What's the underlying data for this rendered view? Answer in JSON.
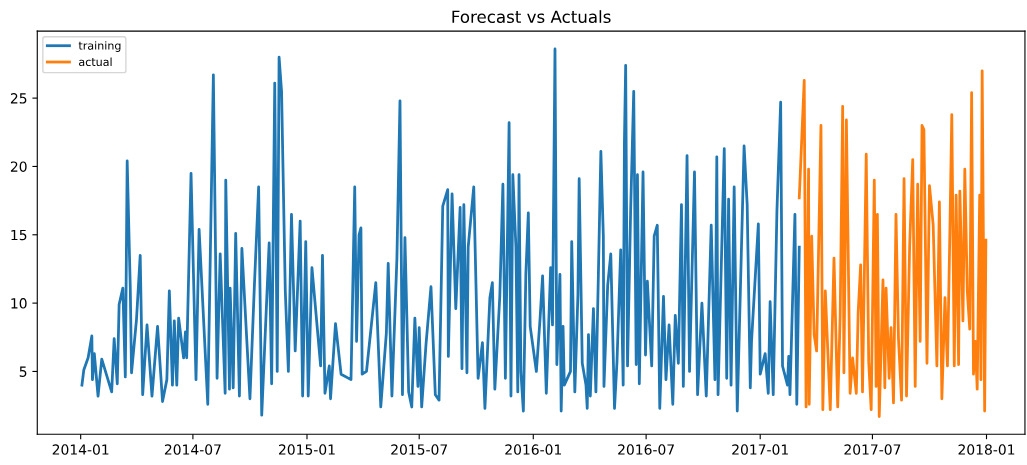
{
  "chart_data": {
    "type": "line",
    "title": "Forecast vs Actuals",
    "legend": "top left",
    "grid": false,
    "xlim": [
      "2013-10-23",
      "2018-03-04"
    ],
    "ylim": [
      0.4,
      29.9
    ],
    "xticks": [
      "2014-01",
      "2014-07",
      "2015-01",
      "2015-07",
      "2016-01",
      "2016-07",
      "2017-01",
      "2017-07",
      "2018-01"
    ],
    "yticks": [
      5,
      10,
      15,
      20,
      25
    ],
    "series": [
      {
        "name": "training",
        "color": "#1f77b4",
        "x": [
          "2014-01-03",
          "2014-01-06",
          "2014-01-13",
          "2014-01-19",
          "2014-01-20",
          "2014-01-23",
          "2014-01-29",
          "2014-02-04",
          "2014-02-20",
          "2014-02-24",
          "2014-03-01",
          "2014-03-04",
          "2014-03-10",
          "2014-03-14",
          "2014-03-17",
          "2014-03-22",
          "2014-03-24",
          "2014-04-01",
          "2014-04-07",
          "2014-04-11",
          "2014-04-18",
          "2014-04-26",
          "2014-05-05",
          "2014-05-13",
          "2014-05-20",
          "2014-05-24",
          "2014-05-29",
          "2014-06-01",
          "2014-06-05",
          "2014-06-08",
          "2014-06-16",
          "2014-06-19",
          "2014-06-21",
          "2014-06-28",
          "2014-07-06",
          "2014-07-11",
          "2014-07-25",
          "2014-08-03",
          "2014-08-09",
          "2014-08-14",
          "2014-08-22",
          "2014-08-23",
          "2014-08-29",
          "2014-08-30",
          "2014-09-04",
          "2014-09-08",
          "2014-09-14",
          "2014-09-18",
          "2014-10-01",
          "2014-10-08",
          "2014-10-15",
          "2014-10-20",
          "2014-11-01",
          "2014-11-05",
          "2014-11-10",
          "2014-11-14",
          "2014-11-17",
          "2014-11-21",
          "2014-11-27",
          "2014-12-02",
          "2014-12-07",
          "2014-12-13",
          "2014-12-21",
          "2014-12-25",
          "2014-12-30",
          "2015-01-03",
          "2015-01-09",
          "2015-01-23",
          "2015-01-26",
          "2015-01-30",
          "2015-02-06",
          "2015-02-08",
          "2015-02-16",
          "2015-02-25",
          "2015-03-13",
          "2015-03-19",
          "2015-03-22",
          "2015-03-26",
          "2015-03-29",
          "2015-03-31",
          "2015-04-07",
          "2015-04-22",
          "2015-04-30",
          "2015-05-09",
          "2015-05-12",
          "2015-05-18",
          "2015-05-26",
          "2015-05-31",
          "2015-06-04",
          "2015-06-08",
          "2015-06-14",
          "2015-06-19",
          "2015-06-24",
          "2015-06-29",
          "2015-07-01",
          "2015-07-05",
          "2015-07-12",
          "2015-07-20",
          "2015-07-27",
          "2015-08-02",
          "2015-08-08",
          "2015-08-16",
          "2015-08-17",
          "2015-08-23",
          "2015-08-29",
          "2015-09-05",
          "2015-09-08",
          "2015-09-11",
          "2015-09-16",
          "2015-09-18",
          "2015-09-27",
          "2015-10-04",
          "2015-10-11",
          "2015-10-15",
          "2015-10-23",
          "2015-10-27",
          "2015-10-31",
          "2015-11-08",
          "2015-11-13",
          "2015-11-17",
          "2015-11-23",
          "2015-11-26",
          "2015-11-29",
          "2015-12-04",
          "2015-12-07",
          "2015-12-09",
          "2015-12-12",
          "2015-12-16",
          "2015-12-20",
          "2015-12-24",
          "2015-12-27",
          "2016-01-06",
          "2016-01-12",
          "2016-01-16",
          "2016-01-22",
          "2016-01-29",
          "2016-02-01",
          "2016-02-05",
          "2016-02-08",
          "2016-02-13",
          "2016-02-15",
          "2016-02-18",
          "2016-02-20",
          "2016-03-01",
          "2016-03-03",
          "2016-03-08",
          "2016-03-13",
          "2016-03-15",
          "2016-03-20",
          "2016-03-26",
          "2016-03-28",
          "2016-03-30",
          "2016-04-02",
          "2016-04-07",
          "2016-04-11",
          "2016-04-15",
          "2016-04-19",
          "2016-04-23",
          "2016-04-24",
          "2016-04-30",
          "2016-05-05",
          "2016-05-11",
          "2016-05-15",
          "2016-05-21",
          "2016-05-25",
          "2016-05-27",
          "2016-05-29",
          "2016-06-01",
          "2016-06-06",
          "2016-06-11",
          "2016-06-15",
          "2016-06-17",
          "2016-06-20",
          "2016-06-26",
          "2016-06-30",
          "2016-07-03",
          "2016-07-10",
          "2016-07-14",
          "2016-07-19",
          "2016-07-23",
          "2016-07-29",
          "2016-08-02",
          "2016-08-07",
          "2016-08-13",
          "2016-08-17",
          "2016-08-22",
          "2016-08-27",
          "2016-08-30",
          "2016-09-05",
          "2016-09-09",
          "2016-09-17",
          "2016-09-22",
          "2016-09-29",
          "2016-10-06",
          "2016-10-14",
          "2016-10-20",
          "2016-10-23",
          "2016-10-25",
          "2016-11-04",
          "2016-11-08",
          "2016-11-11",
          "2016-11-15",
          "2016-11-20",
          "2016-11-25",
          "2016-12-06",
          "2016-12-11",
          "2016-12-16",
          "2016-12-18",
          "2016-12-29",
          "2017-01-01",
          "2017-01-09",
          "2017-01-14",
          "2017-01-17",
          "2017-01-22",
          "2017-01-28",
          "2017-02-03",
          "2017-02-06",
          "2017-02-14",
          "2017-02-16",
          "2017-02-18",
          "2017-02-26",
          "2017-03-01",
          "2017-03-05"
        ],
        "values": [
          4.0,
          5.1,
          6.0,
          7.6,
          4.4,
          6.3,
          3.2,
          5.9,
          3.5,
          7.4,
          4.1,
          9.9,
          11.1,
          4.6,
          20.4,
          11.1,
          4.9,
          8.8,
          13.5,
          3.3,
          8.4,
          3.2,
          8.3,
          2.8,
          4.4,
          10.9,
          4.0,
          8.7,
          4.0,
          8.9,
          6.0,
          7.9,
          6.0,
          19.5,
          4.4,
          15.4,
          2.6,
          26.7,
          4.5,
          13.6,
          3.4,
          19.0,
          3.7,
          11.1,
          3.8,
          15.1,
          3.2,
          14.0,
          3.0,
          11.1,
          18.5,
          1.8,
          14.4,
          4.1,
          26.1,
          5.0,
          28.0,
          25.5,
          10.9,
          5.0,
          16.5,
          6.5,
          16.0,
          3.2,
          14.5,
          3.2,
          12.6,
          5.4,
          13.5,
          3.4,
          5.4,
          3.0,
          8.5,
          4.8,
          4.4,
          18.5,
          7.2,
          15.0,
          15.5,
          4.8,
          5.0,
          11.5,
          2.4,
          7.8,
          12.9,
          3.2,
          13.2,
          24.8,
          3.3,
          14.8,
          3.5,
          2.4,
          8.9,
          3.9,
          8.2,
          2.4,
          7.0,
          11.2,
          3.3,
          2.9,
          17.1,
          18.3,
          6.1,
          18.0,
          9.6,
          17.0,
          5.2,
          17.2,
          4.9,
          14.1,
          18.5,
          4.5,
          7.1,
          2.3,
          10.4,
          11.5,
          3.7,
          10.5,
          18.7,
          4.5,
          23.2,
          3.2,
          19.4,
          14.1,
          3.5,
          19.4,
          5.0,
          2.1,
          12.1,
          16.6,
          8.3,
          5.0,
          8.9,
          12.0,
          3.4,
          12.6,
          8.4,
          28.6,
          5.5,
          12.1,
          2.1,
          8.3,
          4.0,
          5.0,
          14.5,
          3.5,
          10.6,
          19.1,
          5.6,
          4.0,
          2.3,
          7.7,
          3.2,
          9.6,
          3.5,
          12.1,
          21.1,
          14.9,
          3.9,
          11.3,
          13.6,
          2.3,
          5.7,
          13.9,
          4.0,
          21.8,
          27.4,
          5.4,
          16.7,
          25.5,
          5.5,
          19.4,
          4.1,
          19.6,
          6.2,
          11.6,
          5.4,
          14.9,
          15.7,
          2.3,
          10.5,
          4.4,
          8.4,
          2.6,
          9.1,
          5.6,
          17.2,
          3.9,
          20.8,
          5.0,
          19.6,
          3.3,
          10.0,
          3.2,
          15.7,
          4.4,
          20.7,
          3.3,
          21.3,
          4.5,
          17.6,
          4.0,
          18.5,
          2.1,
          21.5,
          17.2,
          3.8,
          7.2,
          15.8,
          4.8,
          6.3,
          3.4,
          10.1,
          3.3,
          16.8,
          24.7,
          5.4,
          4.0,
          6.1,
          3.3,
          16.5,
          2.6,
          14.1
        ]
      },
      {
        "name": "actual",
        "color": "#ff7f0e",
        "x": [
          "2017-03-05",
          "2017-03-13",
          "2017-03-16",
          "2017-03-20",
          "2017-03-21",
          "2017-03-25",
          "2017-03-29",
          "2017-04-02",
          "2017-04-09",
          "2017-04-12",
          "2017-04-16",
          "2017-04-24",
          "2017-04-30",
          "2017-05-06",
          "2017-05-10",
          "2017-05-14",
          "2017-05-16",
          "2017-05-20",
          "2017-05-26",
          "2017-05-30",
          "2017-06-05",
          "2017-06-08",
          "2017-06-12",
          "2017-06-15",
          "2017-06-21",
          "2017-06-25",
          "2017-06-29",
          "2017-07-04",
          "2017-07-07",
          "2017-07-09",
          "2017-07-12",
          "2017-07-18",
          "2017-07-21",
          "2017-07-23",
          "2017-07-28",
          "2017-07-31",
          "2017-08-04",
          "2017-08-08",
          "2017-08-12",
          "2017-08-17",
          "2017-08-21",
          "2017-08-25",
          "2017-08-30",
          "2017-09-04",
          "2017-09-08",
          "2017-09-12",
          "2017-09-16",
          "2017-09-19",
          "2017-09-22",
          "2017-09-27",
          "2017-10-01",
          "2017-10-07",
          "2017-10-13",
          "2017-10-17",
          "2017-10-21",
          "2017-10-26",
          "2017-10-30",
          "2017-11-03",
          "2017-11-06",
          "2017-11-10",
          "2017-11-13",
          "2017-11-17",
          "2017-11-19",
          "2017-11-24",
          "2017-11-27",
          "2017-12-01",
          "2017-12-05",
          "2017-12-08",
          "2017-12-11",
          "2017-12-14",
          "2017-12-17",
          "2017-12-21",
          "2017-12-23",
          "2017-12-25",
          "2017-12-29",
          "2017-12-31"
        ],
        "values": [
          17.7,
          26.3,
          2.4,
          19.8,
          2.6,
          14.9,
          7.7,
          6.5,
          23.0,
          2.2,
          10.9,
          2.2,
          13.3,
          2.4,
          9.1,
          24.4,
          4.9,
          23.4,
          3.4,
          6.0,
          3.4,
          9.3,
          12.8,
          3.5,
          20.9,
          5.7,
          2.2,
          19.0,
          3.9,
          16.5,
          1.7,
          11.7,
          3.8,
          11.1,
          4.5,
          8.2,
          2.7,
          16.5,
          7.4,
          2.9,
          19.1,
          3.2,
          14.1,
          20.5,
          3.9,
          18.7,
          7.2,
          23.0,
          22.7,
          5.6,
          18.6,
          15.7,
          5.4,
          17.4,
          3.0,
          10.4,
          5.4,
          15.4,
          23.8,
          5.4,
          17.9,
          5.5,
          18.2,
          8.7,
          19.8,
          10.9,
          8.1,
          25.4,
          4.8,
          7.2,
          3.7,
          17.9,
          4.4,
          27.0,
          2.1,
          14.6
        ]
      }
    ]
  }
}
